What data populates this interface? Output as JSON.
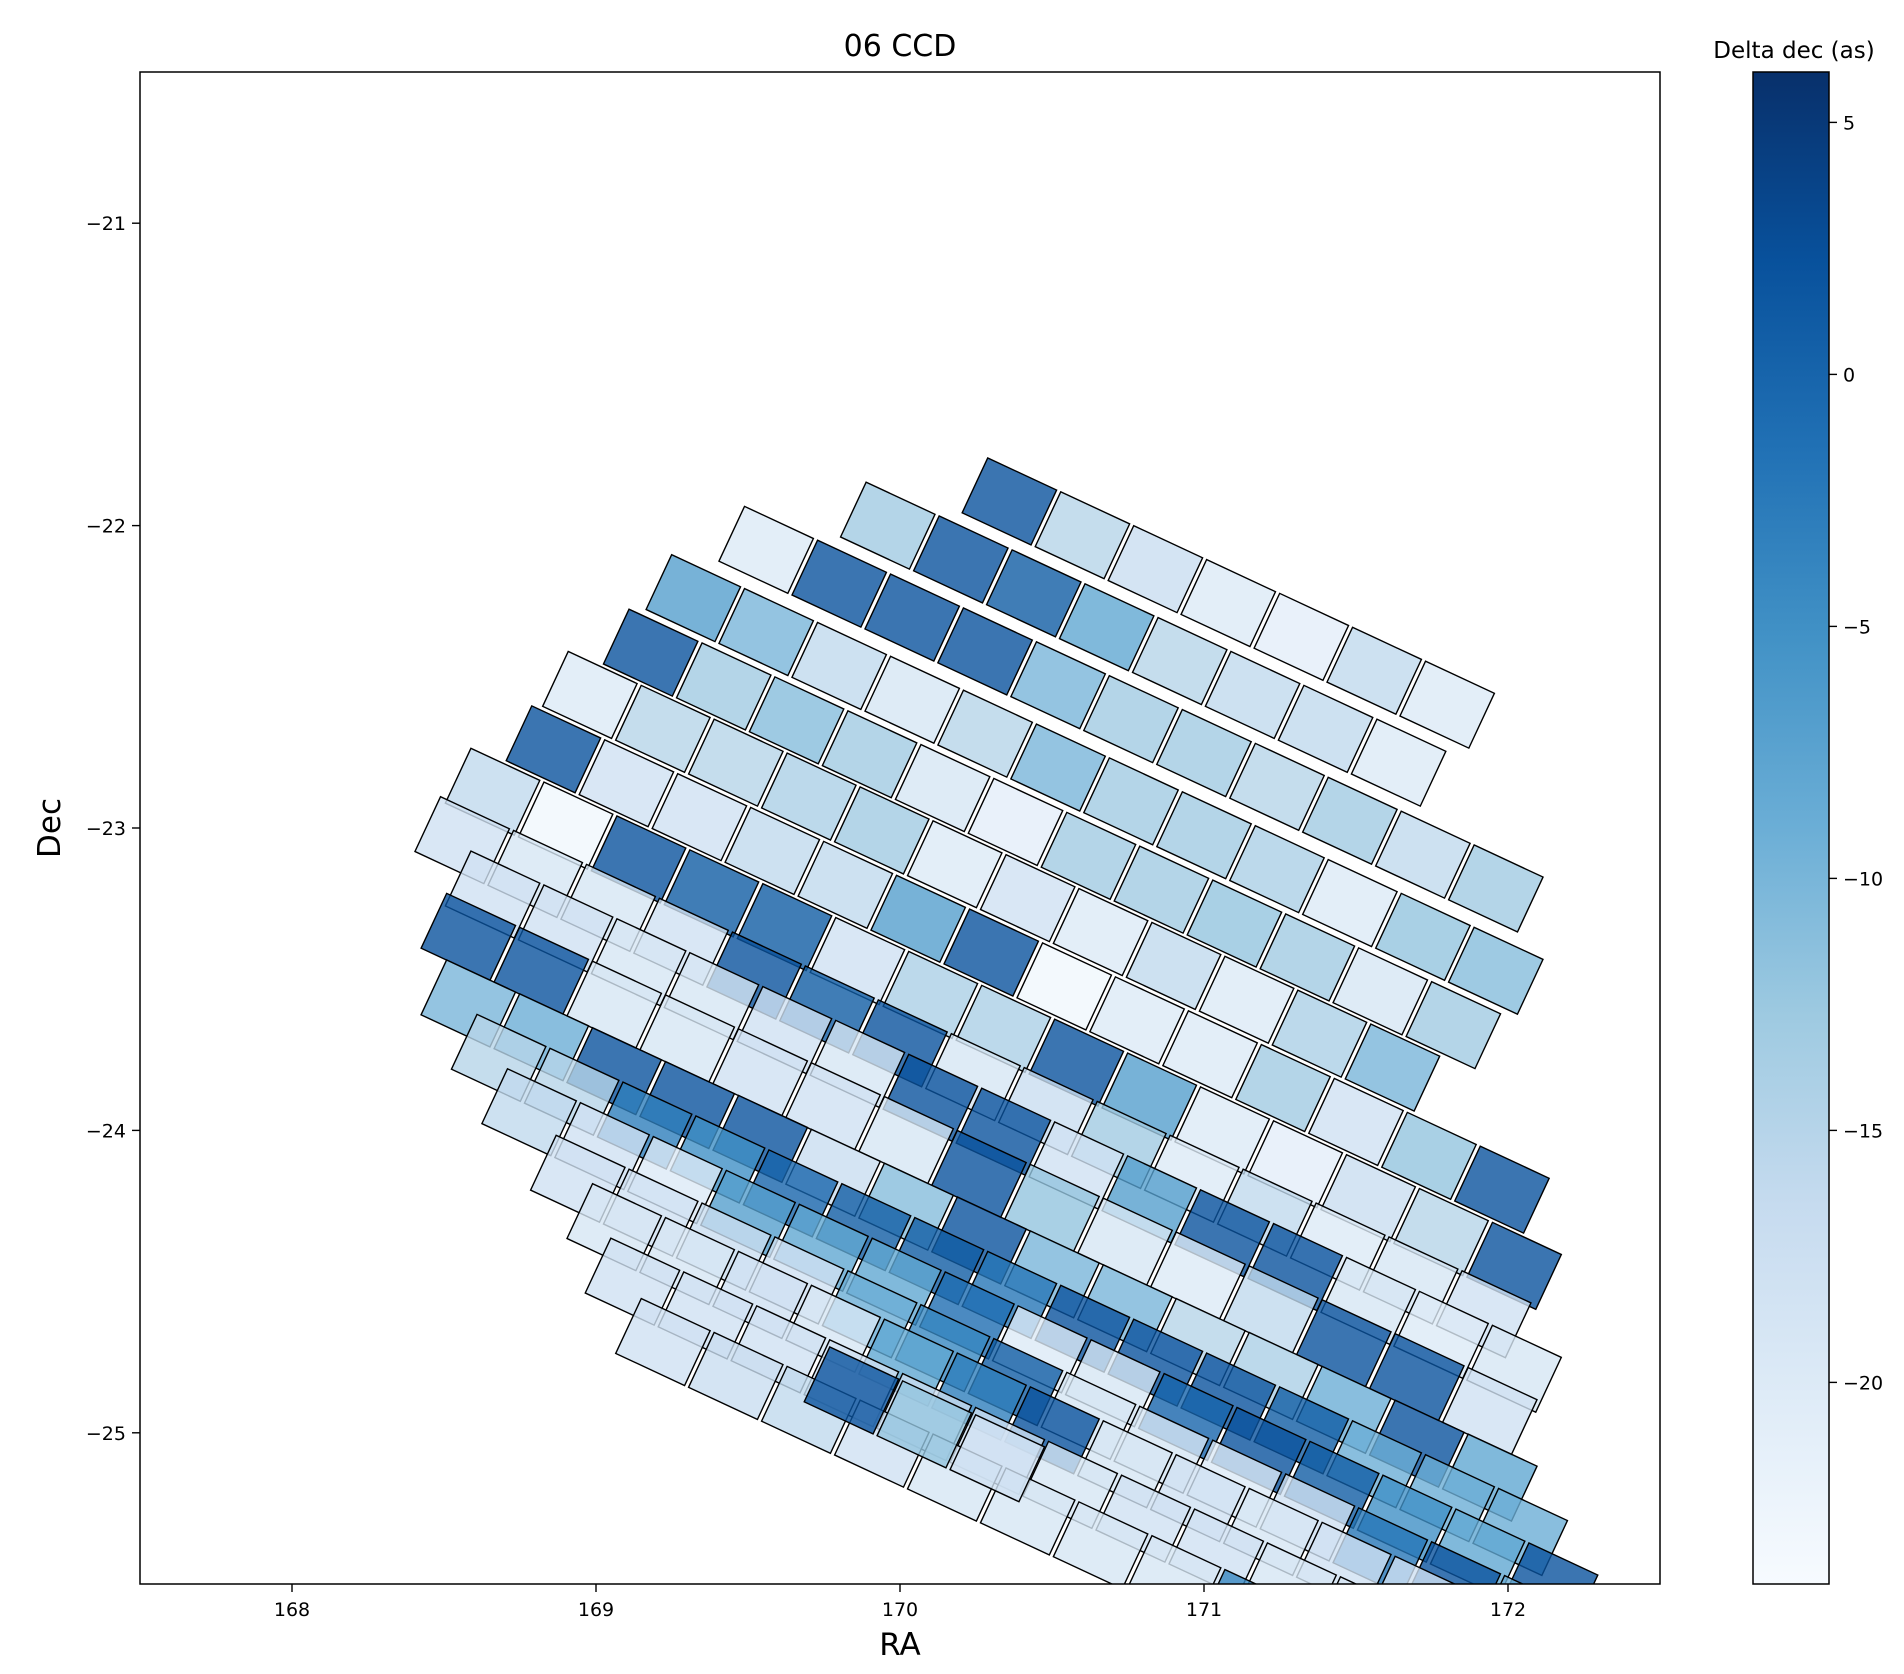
{
  "chart_data": {
    "type": "heatmap",
    "title": "06 CCD",
    "xlabel": "RA",
    "ylabel": "Dec",
    "xlim": [
      167.5,
      172.5
    ],
    "ylim": [
      -25.5,
      -20.5
    ],
    "xticks": [
      168,
      169,
      170,
      171,
      172
    ],
    "xtick_labels": [
      "168",
      "169",
      "170",
      "171",
      "172"
    ],
    "yticks": [
      -21,
      -22,
      -23,
      -24,
      -25
    ],
    "ytick_labels": [
      "−21",
      "−22",
      "−23",
      "−24",
      "−25"
    ],
    "colorbar": {
      "label": "Delta dec (as)",
      "range": [
        -24,
        6
      ],
      "ticks": [
        5,
        0,
        -5,
        -10,
        -15,
        -20
      ],
      "tick_labels": [
        "5",
        "0",
        "−5",
        "−10",
        "−15",
        "−20"
      ],
      "colormap": "Blues",
      "stops": [
        "#f7fbff",
        "#deebf7",
        "#c6dbef",
        "#9ecae1",
        "#6baed6",
        "#4292c6",
        "#2171b5",
        "#08519c",
        "#08306b"
      ]
    },
    "tile_rotation_deg": -25,
    "tile_size_deg": [
      0.25,
      0.2
    ],
    "tile_opacity": 0.8,
    "edge_color": "#000000",
    "tiles_note_rows": "each row is one band of CCD tiles: ra0/dec0 = first tile center, step = offset between successive tiles, values = Delta dec per tile",
    "rows": [
      {
        "ra0": 170.36,
        "dec0": -21.92,
        "dra": 0.24,
        "ddec": -0.112,
        "values": [
          2,
          -15,
          -17,
          -20,
          -21,
          -16,
          -20
        ]
      },
      {
        "ra0": 169.96,
        "dec0": -22.0,
        "dra": 0.24,
        "ddec": -0.112,
        "values": [
          -13,
          2,
          1,
          -8,
          -15,
          -16,
          -16,
          -20
        ]
      },
      {
        "ra0": 169.56,
        "dec0": -22.08,
        "dra": 0.24,
        "ddec": -0.112,
        "values": [
          -20,
          2,
          2,
          2,
          -10,
          -13,
          -13,
          -15,
          -13,
          -16,
          -13
        ]
      },
      {
        "ra0": 169.32,
        "dec0": -22.24,
        "dra": 0.24,
        "ddec": -0.112,
        "values": [
          -7,
          -10,
          -16,
          -19,
          -15,
          -10,
          -13,
          -13,
          -14,
          -20,
          -12,
          -11
        ]
      },
      {
        "ra0": 169.18,
        "dec0": -22.42,
        "dra": 0.24,
        "ddec": -0.112,
        "values": [
          2,
          -13,
          -11,
          -13,
          -19,
          -21,
          -13,
          -13,
          -12,
          -13,
          -19,
          -13
        ]
      },
      {
        "ra0": 168.98,
        "dec0": -22.56,
        "dra": 0.24,
        "ddec": -0.112,
        "values": [
          -20,
          -15,
          -15,
          -14,
          -13,
          -20,
          -18,
          -20,
          -16,
          -20,
          -14,
          -10
        ]
      },
      {
        "ra0": 168.86,
        "dec0": -22.74,
        "dra": 0.24,
        "ddec": -0.112,
        "values": [
          2,
          -18,
          -18,
          -16,
          -16,
          -7,
          2,
          -23,
          -20,
          -20,
          -13,
          -18,
          -12,
          2
        ]
      },
      {
        "ra0": 168.66,
        "dec0": -22.88,
        "dra": 0.24,
        "ddec": -0.112,
        "values": [
          -16,
          -23,
          2,
          1,
          1,
          -18,
          -14,
          -14,
          2,
          -7,
          -20,
          -21,
          -17,
          -15,
          2
        ]
      },
      {
        "ra0": 168.56,
        "dec0": -23.04,
        "dra": 0.24,
        "ddec": -0.112,
        "values": [
          -18,
          -19,
          -19,
          -18,
          2,
          1,
          2,
          -19,
          -17,
          -13,
          -20,
          -16,
          -20,
          -19,
          -18
        ]
      },
      {
        "ra0": 168.66,
        "dec0": -23.22,
        "dra": 0.24,
        "ddec": -0.112,
        "values": [
          -18,
          -18,
          -19,
          -19,
          -18,
          -19,
          2,
          2,
          -18,
          -7,
          2,
          2,
          -19,
          -20,
          -19
        ]
      },
      {
        "ra0": 168.58,
        "dec0": -23.36,
        "dra": 0.24,
        "ddec": -0.112,
        "values": [
          2,
          2,
          -19,
          -19,
          -18,
          -18,
          -19,
          2,
          -12,
          -19,
          -20,
          -16,
          2,
          2,
          -18
        ]
      },
      {
        "ra0": 168.58,
        "dec0": -23.58,
        "dra": 0.24,
        "ddec": -0.112,
        "values": [
          -10,
          -9,
          2,
          2,
          2,
          -17,
          -11,
          2,
          -10,
          -10,
          -15,
          -14,
          -9,
          2,
          -8
        ]
      },
      {
        "ra0": 168.68,
        "dec0": -23.76,
        "dra": 0.24,
        "ddec": -0.112,
        "values": [
          -15,
          -15,
          -3,
          -5,
          0,
          1,
          1,
          -2,
          2,
          2,
          2,
          1,
          -9,
          -9,
          -9
        ]
      },
      {
        "ra0": 168.78,
        "dec0": -23.94,
        "dra": 0.24,
        "ddec": -0.112,
        "values": [
          -16,
          -18,
          -20,
          -7,
          -8,
          -8,
          -1,
          -20,
          -19,
          0,
          2,
          1,
          -5,
          -8,
          2
        ]
      },
      {
        "ra0": 168.94,
        "dec0": -24.16,
        "dra": 0.24,
        "ddec": -0.112,
        "values": [
          -18,
          -18,
          -17,
          -18,
          -9,
          -4,
          1,
          -19,
          -19,
          -20,
          -18,
          -2,
          2,
          -9,
          -7
        ]
      },
      {
        "ra0": 169.06,
        "dec0": -24.32,
        "dra": 0.24,
        "ddec": -0.112,
        "values": [
          -19,
          -19,
          -18,
          -19,
          -8,
          -3,
          2,
          -19,
          -18,
          -19,
          -18,
          -18,
          2,
          -19
        ]
      },
      {
        "ra0": 169.12,
        "dec0": -24.5,
        "dra": 0.24,
        "ddec": -0.112,
        "values": [
          -18,
          -18,
          -18,
          -18,
          -17,
          -18,
          -19,
          -18,
          -18,
          -19,
          -19,
          -19,
          -20
        ]
      },
      {
        "ra0": 169.22,
        "dec0": -24.7,
        "dra": 0.24,
        "ddec": -0.112,
        "values": [
          -18,
          -17,
          -16,
          -18,
          -19,
          -19,
          -19,
          -19,
          -4,
          -18
        ]
      },
      {
        "ra0": 169.84,
        "dec0": -24.86,
        "dra": 0.24,
        "ddec": -0.112,
        "values": [
          2,
          -12,
          -18
        ]
      }
    ]
  }
}
